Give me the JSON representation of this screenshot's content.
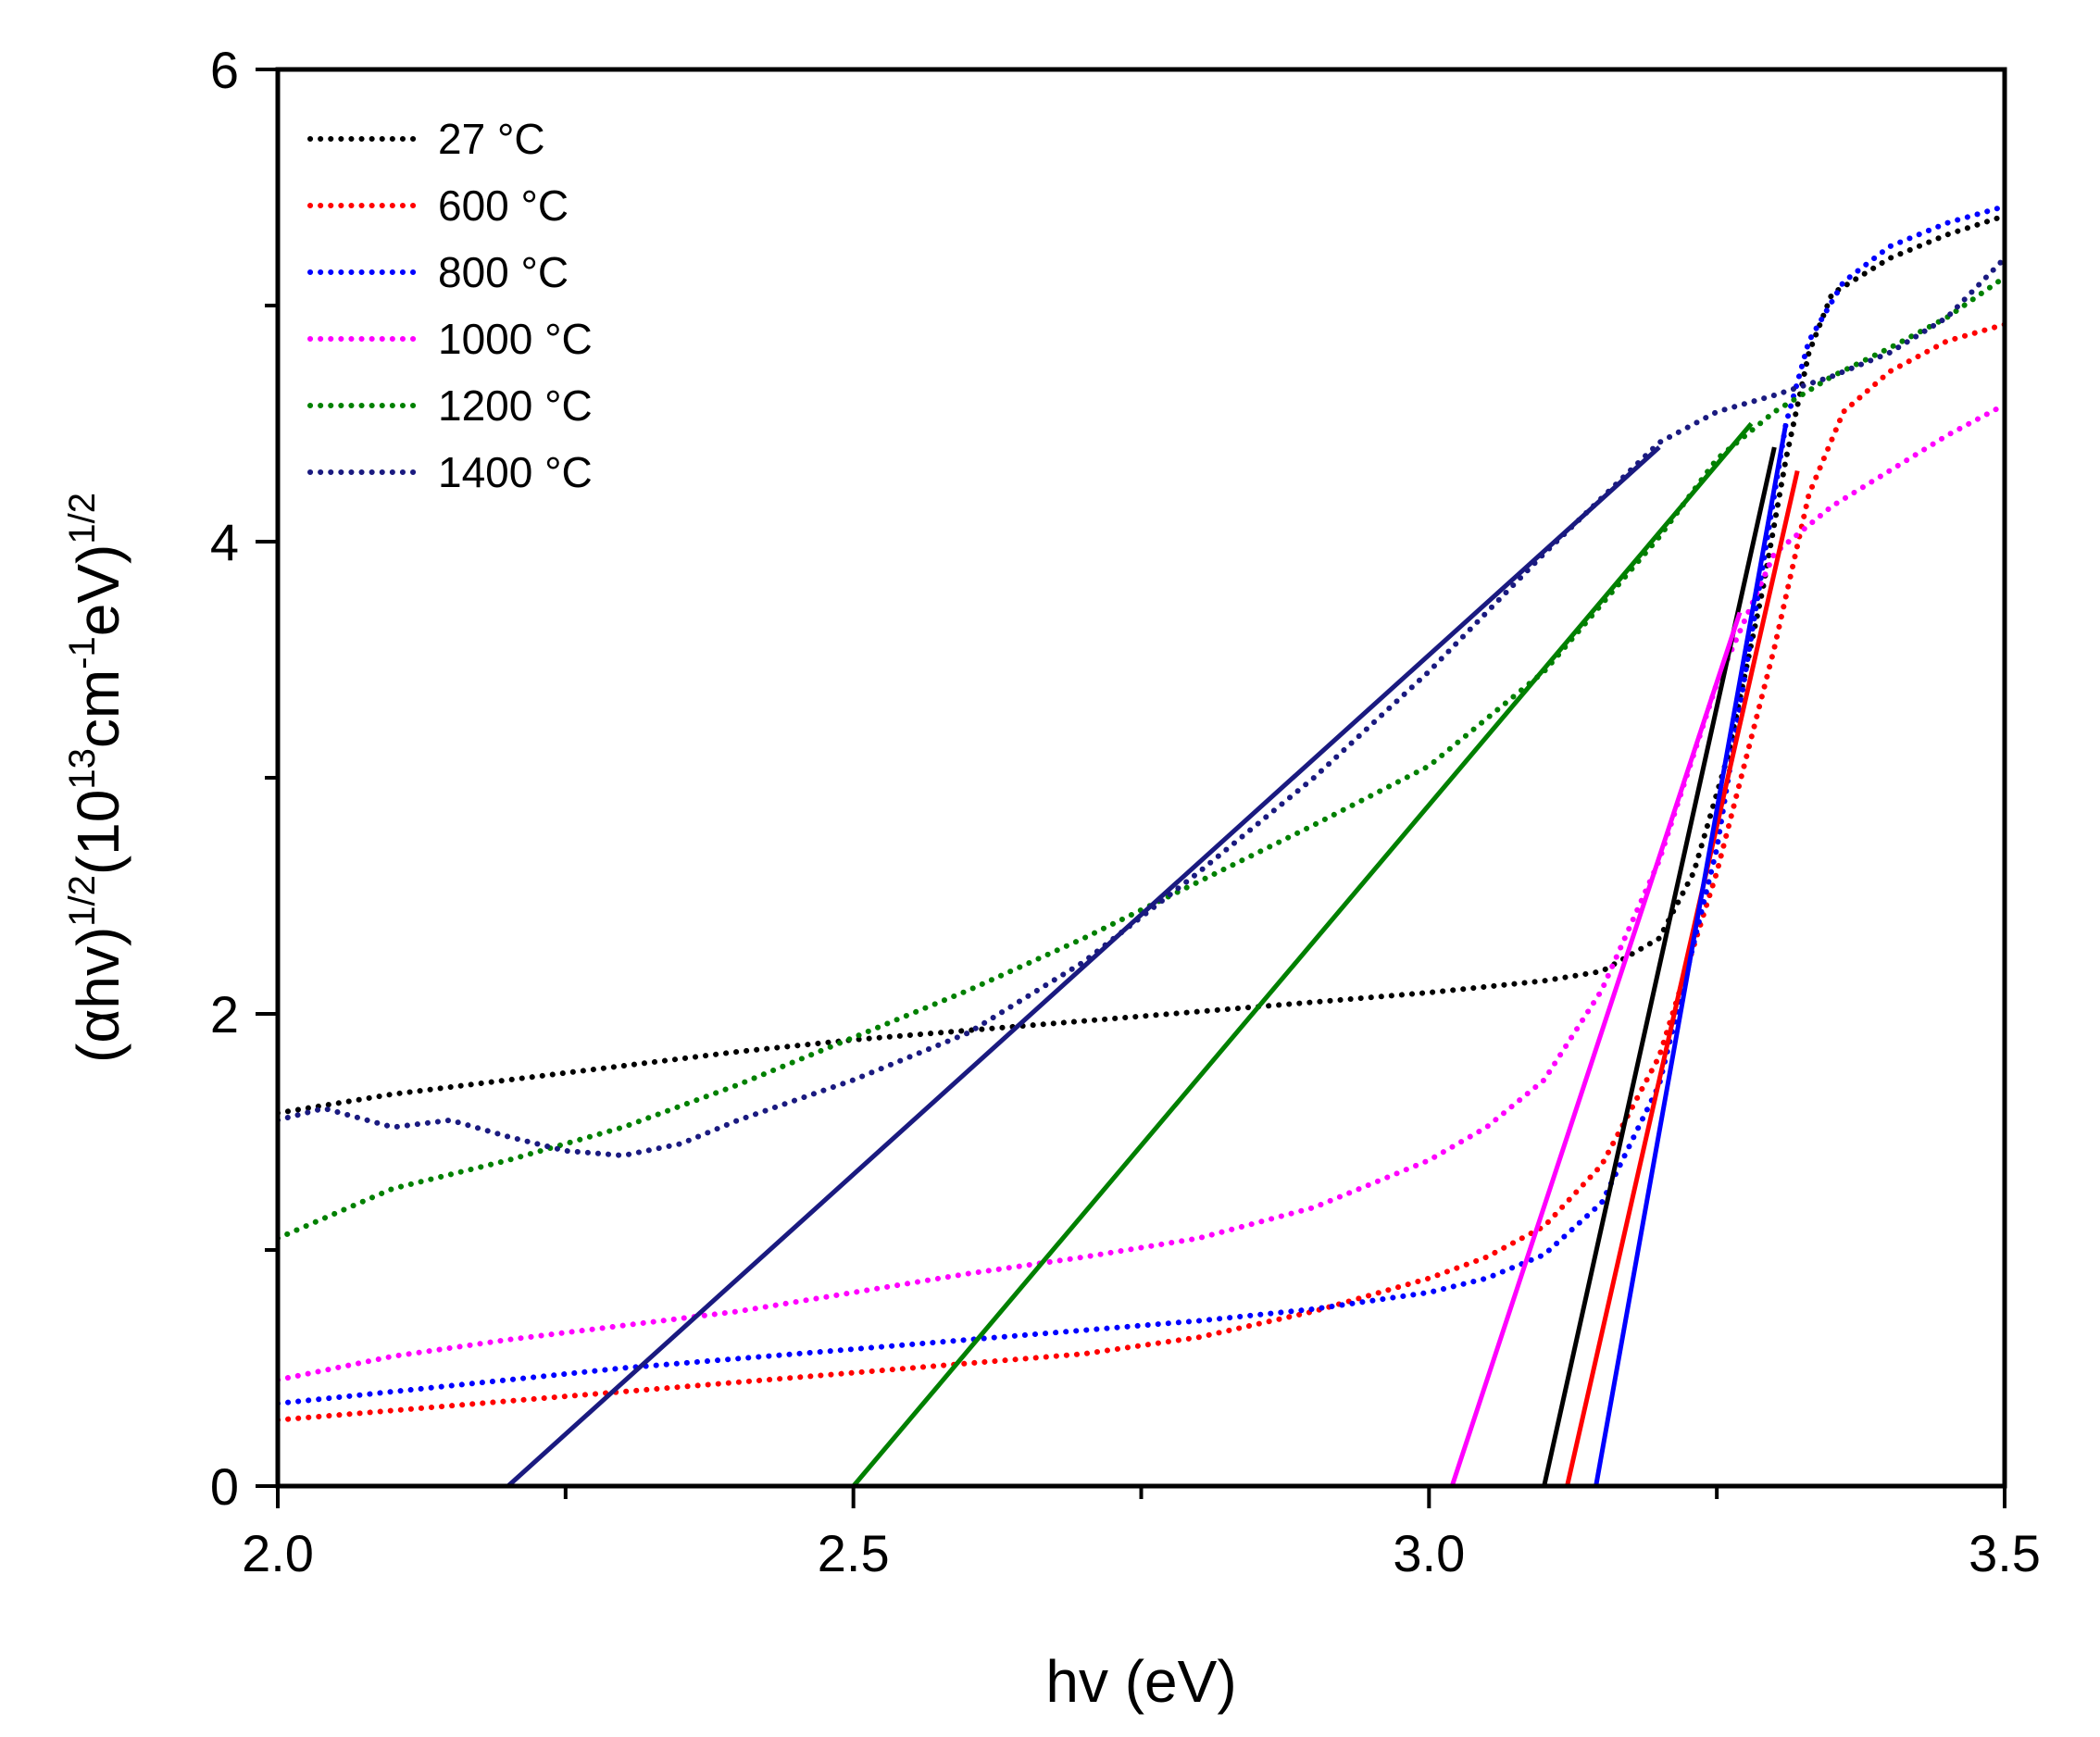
{
  "chart_data": {
    "type": "line",
    "title": "",
    "xlabel": "hv (eV)",
    "ylabel_parts": {
      "open": "(",
      "alpha": "α",
      "hv": "hv)",
      "exp1": "1/2",
      "mid": "(10",
      "exp13": "13",
      "cm": "cm",
      "expm1": "-1",
      "ev": "eV)",
      "exp2": "1/2"
    },
    "xlim": [
      2.0,
      3.5
    ],
    "ylim": [
      0,
      6
    ],
    "x_ticks": [
      {
        "value": 2.0,
        "label": "2.0"
      },
      {
        "value": 2.5,
        "label": "2.5"
      },
      {
        "value": 3.0,
        "label": "3.0"
      },
      {
        "value": 3.5,
        "label": "3.5"
      }
    ],
    "x_minor_ticks": [
      2.25,
      2.75,
      3.25
    ],
    "y_ticks": [
      {
        "value": 0,
        "label": "0"
      },
      {
        "value": 2,
        "label": "2"
      },
      {
        "value": 4,
        "label": "4"
      },
      {
        "value": 6,
        "label": "6"
      }
    ],
    "y_minor_ticks": [
      1,
      3,
      5
    ],
    "legend_position": "top-left",
    "series": [
      {
        "name": "27 °C",
        "color": "#000000",
        "style": "dotted",
        "points": [
          [
            2.0,
            1.58
          ],
          [
            2.1,
            1.66
          ],
          [
            2.2,
            1.72
          ],
          [
            2.3,
            1.78
          ],
          [
            2.4,
            1.84
          ],
          [
            2.5,
            1.89
          ],
          [
            2.6,
            1.93
          ],
          [
            2.7,
            1.97
          ],
          [
            2.8,
            2.01
          ],
          [
            2.9,
            2.05
          ],
          [
            3.0,
            2.09
          ],
          [
            3.1,
            2.14
          ],
          [
            3.15,
            2.18
          ],
          [
            3.2,
            2.32
          ],
          [
            3.23,
            2.6
          ],
          [
            3.26,
            3.1
          ],
          [
            3.29,
            3.8
          ],
          [
            3.31,
            4.35
          ],
          [
            3.33,
            4.8
          ],
          [
            3.35,
            5.05
          ],
          [
            3.4,
            5.2
          ],
          [
            3.45,
            5.3
          ],
          [
            3.5,
            5.38
          ]
        ],
        "fit": [
          [
            3.1,
            0
          ],
          [
            3.3,
            4.4
          ]
        ]
      },
      {
        "name": "600 °C",
        "color": "#ff0000",
        "style": "dotted",
        "points": [
          [
            2.0,
            0.28
          ],
          [
            2.1,
            0.32
          ],
          [
            2.2,
            0.36
          ],
          [
            2.3,
            0.4
          ],
          [
            2.4,
            0.44
          ],
          [
            2.5,
            0.48
          ],
          [
            2.6,
            0.52
          ],
          [
            2.7,
            0.56
          ],
          [
            2.8,
            0.63
          ],
          [
            2.9,
            0.74
          ],
          [
            3.0,
            0.88
          ],
          [
            3.05,
            0.97
          ],
          [
            3.1,
            1.1
          ],
          [
            3.15,
            1.36
          ],
          [
            3.2,
            1.82
          ],
          [
            3.25,
            2.6
          ],
          [
            3.3,
            3.55
          ],
          [
            3.33,
            4.2
          ],
          [
            3.36,
            4.55
          ],
          [
            3.4,
            4.72
          ],
          [
            3.45,
            4.85
          ],
          [
            3.5,
            4.92
          ]
        ],
        "fit": [
          [
            3.12,
            0
          ],
          [
            3.32,
            4.3
          ]
        ]
      },
      {
        "name": "800 °C",
        "color": "#0000ff",
        "style": "dotted",
        "points": [
          [
            2.0,
            0.35
          ],
          [
            2.1,
            0.4
          ],
          [
            2.2,
            0.45
          ],
          [
            2.3,
            0.5
          ],
          [
            2.4,
            0.54
          ],
          [
            2.5,
            0.58
          ],
          [
            2.6,
            0.62
          ],
          [
            2.7,
            0.66
          ],
          [
            2.8,
            0.7
          ],
          [
            2.9,
            0.75
          ],
          [
            3.0,
            0.82
          ],
          [
            3.05,
            0.88
          ],
          [
            3.1,
            0.98
          ],
          [
            3.15,
            1.2
          ],
          [
            3.2,
            1.7
          ],
          [
            3.25,
            2.7
          ],
          [
            3.28,
            3.6
          ],
          [
            3.31,
            4.5
          ],
          [
            3.33,
            4.85
          ],
          [
            3.36,
            5.1
          ],
          [
            3.4,
            5.25
          ],
          [
            3.45,
            5.35
          ],
          [
            3.5,
            5.42
          ]
        ],
        "fit": [
          [
            3.145,
            0
          ],
          [
            3.31,
            4.5
          ]
        ]
      },
      {
        "name": "1000 °C",
        "color": "#ff00ff",
        "style": "dotted",
        "points": [
          [
            2.0,
            0.45
          ],
          [
            2.1,
            0.55
          ],
          [
            2.2,
            0.62
          ],
          [
            2.3,
            0.68
          ],
          [
            2.4,
            0.74
          ],
          [
            2.5,
            0.82
          ],
          [
            2.6,
            0.9
          ],
          [
            2.7,
            0.97
          ],
          [
            2.8,
            1.05
          ],
          [
            2.9,
            1.18
          ],
          [
            3.0,
            1.38
          ],
          [
            3.05,
            1.52
          ],
          [
            3.1,
            1.72
          ],
          [
            3.15,
            2.1
          ],
          [
            3.2,
            2.65
          ],
          [
            3.25,
            3.4
          ],
          [
            3.3,
            3.95
          ],
          [
            3.35,
            4.15
          ],
          [
            3.4,
            4.3
          ],
          [
            3.45,
            4.45
          ],
          [
            3.5,
            4.58
          ]
        ],
        "fit": [
          [
            3.02,
            0
          ],
          [
            3.27,
            3.7
          ]
        ]
      },
      {
        "name": "1200 °C",
        "color": "#008000",
        "style": "dotted",
        "points": [
          [
            2.0,
            1.05
          ],
          [
            2.1,
            1.26
          ],
          [
            2.2,
            1.38
          ],
          [
            2.3,
            1.52
          ],
          [
            2.4,
            1.7
          ],
          [
            2.5,
            1.9
          ],
          [
            2.6,
            2.1
          ],
          [
            2.7,
            2.32
          ],
          [
            2.8,
            2.56
          ],
          [
            2.9,
            2.8
          ],
          [
            3.0,
            3.05
          ],
          [
            3.1,
            3.45
          ],
          [
            3.2,
            4.02
          ],
          [
            3.25,
            4.35
          ],
          [
            3.3,
            4.55
          ],
          [
            3.35,
            4.7
          ],
          [
            3.4,
            4.82
          ],
          [
            3.45,
            4.95
          ],
          [
            3.5,
            5.12
          ]
        ],
        "fit": [
          [
            2.5,
            0
          ],
          [
            3.28,
            4.5
          ]
        ]
      },
      {
        "name": "1400 °C",
        "color": "#1a1a80",
        "style": "dotted",
        "points": [
          [
            2.0,
            1.55
          ],
          [
            2.04,
            1.6
          ],
          [
            2.1,
            1.52
          ],
          [
            2.15,
            1.55
          ],
          [
            2.2,
            1.48
          ],
          [
            2.25,
            1.42
          ],
          [
            2.3,
            1.4
          ],
          [
            2.35,
            1.45
          ],
          [
            2.4,
            1.55
          ],
          [
            2.5,
            1.72
          ],
          [
            2.6,
            1.92
          ],
          [
            2.7,
            2.22
          ],
          [
            2.8,
            2.6
          ],
          [
            2.9,
            3.0
          ],
          [
            3.0,
            3.45
          ],
          [
            3.1,
            3.95
          ],
          [
            3.2,
            4.42
          ],
          [
            3.25,
            4.55
          ],
          [
            3.3,
            4.62
          ],
          [
            3.35,
            4.7
          ],
          [
            3.4,
            4.8
          ],
          [
            3.45,
            4.95
          ],
          [
            3.5,
            5.2
          ]
        ],
        "fit": [
          [
            2.2,
            0
          ],
          [
            3.2,
            4.4
          ]
        ]
      }
    ]
  }
}
